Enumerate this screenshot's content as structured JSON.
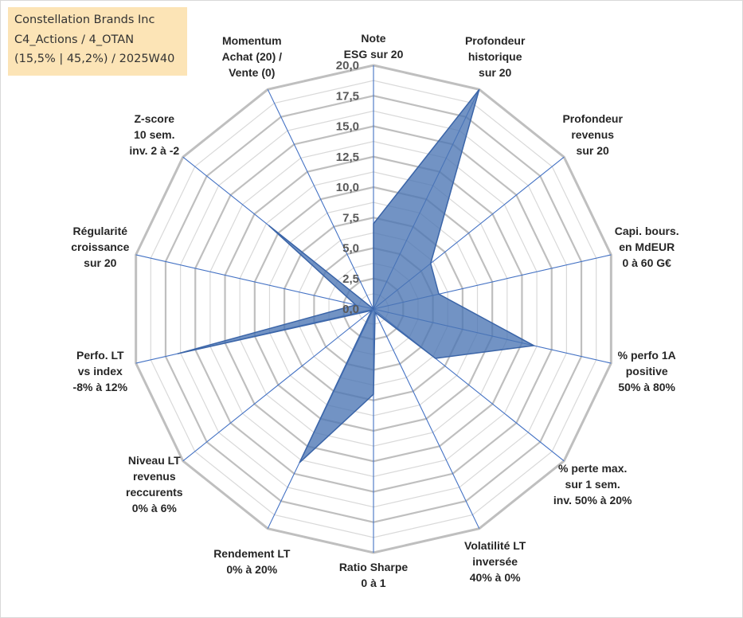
{
  "info_box": {
    "line1": "Constellation Brands Inc",
    "line2": "C4_Actions / 4_OTAN",
    "line3": "(15,5% | 45,2%) / 2025W40"
  },
  "colors": {
    "series_fill": "#4a74b4",
    "series_line": "#3b65a8",
    "spoke": "#4472c4",
    "grid_major": "#bfbfbf",
    "grid_minor": "#d9d9d9",
    "info_box_bg": "#fce4b6"
  },
  "chart_data": {
    "type": "radar",
    "title": "",
    "scale_min": 0,
    "scale_max": 20,
    "scale_step": 2.5,
    "tick_labels": [
      "0,0",
      "2,5",
      "5,0",
      "7,5",
      "10,0",
      "12,5",
      "15,0",
      "17,5",
      "20,0"
    ],
    "grid": true,
    "legend": "none",
    "axes": [
      [
        "Note",
        "ESG sur 20"
      ],
      [
        "Profondeur",
        "historique",
        "sur 20"
      ],
      [
        "Profondeur",
        "revenus",
        "sur 20"
      ],
      [
        "Capi. bours.",
        "en MdEUR",
        "0 à 60 G€"
      ],
      [
        "% perfo 1A",
        "positive",
        "50% à 80%"
      ],
      [
        "% perte max.",
        "sur 1 sem.",
        "inv. 50% à 20%"
      ],
      [
        "Volatilité LT",
        "inversée",
        "40% à 0%"
      ],
      [
        "Ratio Sharpe",
        "0 à 1"
      ],
      [
        "Rendement LT",
        "0% à 20%"
      ],
      [
        "Niveau LT",
        "revenus",
        "reccurents",
        "0% à 6%"
      ],
      [
        "Perfo. LT",
        "vs index",
        "-8% à 12%"
      ],
      [
        "Régularité",
        "croissance",
        "sur 20"
      ],
      [
        "Z-score",
        "10 sem.",
        "inv. 2 à -2"
      ],
      [
        "Momentum",
        "Achat (20) /",
        "Vente (0)"
      ]
    ],
    "series": [
      {
        "values": [
          7.0,
          20.0,
          6.0,
          5.5,
          13.5,
          6.5,
          0.3,
          7.0,
          14.0,
          0.2,
          16.5,
          1.5,
          11.0,
          0.0
        ]
      }
    ]
  }
}
